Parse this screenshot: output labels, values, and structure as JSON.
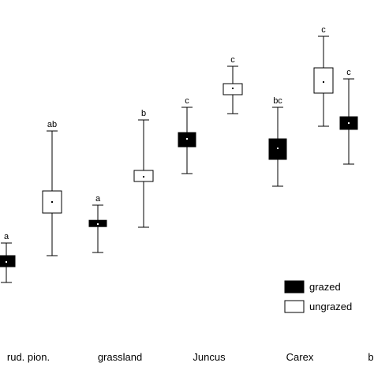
{
  "chart_data": {
    "type": "box",
    "title": "",
    "xlabel": "",
    "ylabel": "",
    "ylim": [
      0,
      10
    ],
    "grid": false,
    "legend_position": "bottom-right",
    "categories": [
      "rud. pion.",
      "grassland",
      "Juncus",
      "Carex",
      "b"
    ],
    "series": [
      {
        "name": "grazed",
        "fill": "#000000",
        "boxes": [
          {
            "category": "rud. pion.",
            "mean": 2.2,
            "box_low": 2.05,
            "box_high": 2.4,
            "whisker_low": 1.55,
            "whisker_high": 2.8,
            "label": "a"
          },
          {
            "category": "grassland",
            "mean": 3.4,
            "box_low": 3.32,
            "box_high": 3.52,
            "whisker_low": 2.5,
            "whisker_high": 4.0,
            "label": "a"
          },
          {
            "category": "Juncus",
            "mean": 6.1,
            "box_low": 5.85,
            "box_high": 6.3,
            "whisker_low": 5.0,
            "whisker_high": 7.1,
            "label": "c"
          },
          {
            "category": "Carex",
            "mean": 5.8,
            "box_low": 5.45,
            "box_high": 6.1,
            "whisker_low": 4.6,
            "whisker_high": 7.1,
            "label": "bc"
          },
          {
            "category": "b",
            "mean": 6.6,
            "box_low": 6.4,
            "box_high": 6.8,
            "whisker_low": 5.3,
            "whisker_high": 8.0,
            "label": "c"
          }
        ]
      },
      {
        "name": "ungrazed",
        "fill": "#ffffff",
        "boxes": [
          {
            "category": "rud. pion.",
            "mean": 4.1,
            "box_low": 3.75,
            "box_high": 4.45,
            "whisker_low": 2.4,
            "whisker_high": 6.35,
            "label": "ab"
          },
          {
            "category": "grassland",
            "mean": 4.9,
            "box_low": 4.75,
            "box_high": 5.1,
            "whisker_low": 3.3,
            "whisker_high": 6.7,
            "label": "b"
          },
          {
            "category": "Juncus",
            "mean": 7.7,
            "box_low": 7.5,
            "box_high": 7.85,
            "whisker_low": 6.9,
            "whisker_high": 8.4,
            "label": "c"
          },
          {
            "category": "Carex",
            "mean": 7.9,
            "box_low": 7.55,
            "box_high": 8.35,
            "whisker_low": 6.5,
            "whisker_high": 9.35,
            "label": "c"
          }
        ]
      }
    ]
  }
}
